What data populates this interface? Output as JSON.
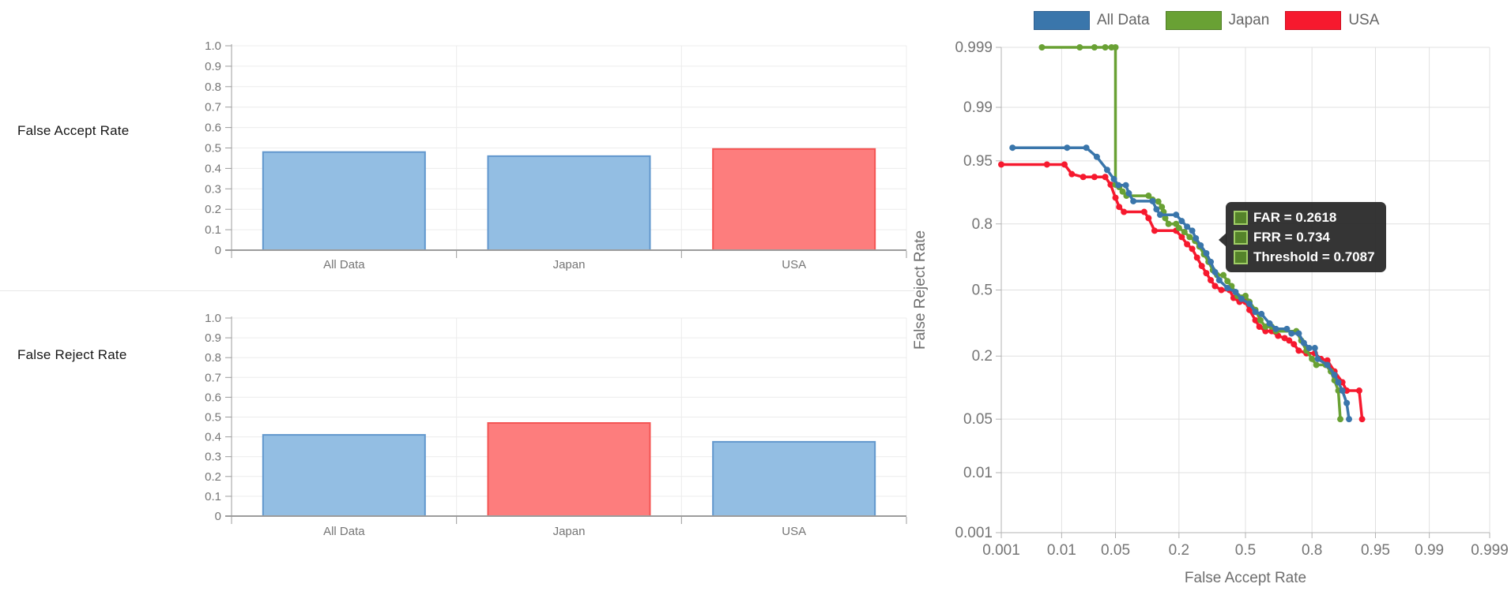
{
  "colors": {
    "background": "#ffffff",
    "bar_fill": "#93bee3",
    "bar_stroke": "#6197cd",
    "bar_highlight_fill": "#fd7d7d",
    "bar_highlight_stroke": "#f45453",
    "grid_bar": "#ececec",
    "grid_det": "#e0e0e0",
    "axis": "#9c9c9c",
    "axis_det": "#b3b3b3",
    "tick_text": "#757575",
    "axis_title": "#6e6e6e",
    "row_label": "#161616",
    "legend_text": "#666666",
    "tooltip_bg": "#2a2a2a",
    "tooltip_text": "#ffffff",
    "tooltip_swatch_fill": "#55832a",
    "tooltip_swatch_border": "#a0ce66"
  },
  "chart_data": [
    {
      "type": "bar",
      "row_label": "False Accept Rate",
      "categories": [
        "All Data",
        "Japan",
        "USA"
      ],
      "values": [
        0.48,
        0.46,
        0.495
      ],
      "highlight_index": 2,
      "ylim": [
        0,
        1
      ],
      "y_ticks": [
        0,
        0.1,
        0.2,
        0.3,
        0.4,
        0.5,
        0.6,
        0.7,
        0.8,
        0.9,
        1.0
      ],
      "y_tick_labels": [
        "0",
        "0.1",
        "0.2",
        "0.3",
        "0.4",
        "0.5",
        "0.6",
        "0.7",
        "0.8",
        "0.9",
        "1.0"
      ],
      "grid": true
    },
    {
      "type": "bar",
      "row_label": "False Reject Rate",
      "categories": [
        "All Data",
        "Japan",
        "USA"
      ],
      "values": [
        0.41,
        0.47,
        0.375
      ],
      "highlight_index": 1,
      "ylim": [
        0,
        1
      ],
      "y_ticks": [
        0,
        0.1,
        0.2,
        0.3,
        0.4,
        0.5,
        0.6,
        0.7,
        0.8,
        0.9,
        1.0
      ],
      "y_tick_labels": [
        "0",
        "0.1",
        "0.2",
        "0.3",
        "0.4",
        "0.5",
        "0.6",
        "0.7",
        "0.8",
        "0.9",
        "1.0"
      ],
      "grid": true
    },
    {
      "type": "line",
      "scale": "probit",
      "xlabel": "False Accept Rate",
      "ylabel": "False Reject Rate",
      "x_range": [
        0.001,
        0.999
      ],
      "y_range": [
        0.001,
        0.999
      ],
      "ticks": [
        0.001,
        0.01,
        0.05,
        0.2,
        0.5,
        0.8,
        0.95,
        0.99,
        0.999
      ],
      "tick_labels": [
        "0.001",
        "0.01",
        "0.05",
        "0.2",
        "0.5",
        "0.8",
        "0.95",
        "0.99",
        "0.999"
      ],
      "grid": true,
      "legend_position": "top",
      "series": [
        {
          "name": "All Data",
          "color": "#3a76ab",
          "border": "#2d5f90",
          "points": [
            [
              0.0016,
              0.965
            ],
            [
              0.012,
              0.965
            ],
            [
              0.022,
              0.965
            ],
            [
              0.03,
              0.955
            ],
            [
              0.04,
              0.937
            ],
            [
              0.048,
              0.921
            ],
            [
              0.054,
              0.909
            ],
            [
              0.065,
              0.909
            ],
            [
              0.07,
              0.891
            ],
            [
              0.078,
              0.871
            ],
            [
              0.12,
              0.871
            ],
            [
              0.13,
              0.848
            ],
            [
              0.14,
              0.831
            ],
            [
              0.19,
              0.831
            ],
            [
              0.21,
              0.81
            ],
            [
              0.23,
              0.79
            ],
            [
              0.25,
              0.775
            ],
            [
              0.265,
              0.745
            ],
            [
              0.285,
              0.715
            ],
            [
              0.31,
              0.68
            ],
            [
              0.33,
              0.64
            ],
            [
              0.35,
              0.59
            ],
            [
              0.37,
              0.55
            ],
            [
              0.41,
              0.51
            ],
            [
              0.45,
              0.49
            ],
            [
              0.48,
              0.455
            ],
            [
              0.52,
              0.43
            ],
            [
              0.55,
              0.39
            ],
            [
              0.58,
              0.38
            ],
            [
              0.62,
              0.335
            ],
            [
              0.65,
              0.31
            ],
            [
              0.7,
              0.31
            ],
            [
              0.72,
              0.29
            ],
            [
              0.75,
              0.29
            ],
            [
              0.77,
              0.25
            ],
            [
              0.79,
              0.23
            ],
            [
              0.81,
              0.23
            ],
            [
              0.82,
              0.19
            ],
            [
              0.85,
              0.17
            ],
            [
              0.87,
              0.14
            ],
            [
              0.88,
              0.12
            ],
            [
              0.89,
              0.1
            ],
            [
              0.9,
              0.075
            ],
            [
              0.905,
              0.05
            ]
          ]
        },
        {
          "name": "Japan",
          "color": "#69a134",
          "border": "#4f7d24",
          "points": [
            [
              0.005,
              0.999
            ],
            [
              0.018,
              0.999
            ],
            [
              0.028,
              0.999
            ],
            [
              0.038,
              0.999
            ],
            [
              0.045,
              0.999
            ],
            [
              0.05,
              0.999
            ],
            [
              0.05,
              0.91
            ],
            [
              0.055,
              0.905
            ],
            [
              0.06,
              0.895
            ],
            [
              0.066,
              0.885
            ],
            [
              0.11,
              0.885
            ],
            [
              0.12,
              0.875
            ],
            [
              0.135,
              0.87
            ],
            [
              0.145,
              0.855
            ],
            [
              0.15,
              0.84
            ],
            [
              0.155,
              0.82
            ],
            [
              0.165,
              0.8
            ],
            [
              0.19,
              0.8
            ],
            [
              0.2,
              0.785
            ],
            [
              0.22,
              0.77
            ],
            [
              0.24,
              0.75
            ],
            [
              0.2618,
              0.734
            ],
            [
              0.28,
              0.71
            ],
            [
              0.3,
              0.675
            ],
            [
              0.32,
              0.64
            ],
            [
              0.34,
              0.6
            ],
            [
              0.36,
              0.575
            ],
            [
              0.39,
              0.575
            ],
            [
              0.41,
              0.545
            ],
            [
              0.43,
              0.52
            ],
            [
              0.46,
              0.47
            ],
            [
              0.5,
              0.47
            ],
            [
              0.52,
              0.44
            ],
            [
              0.55,
              0.4
            ],
            [
              0.575,
              0.35
            ],
            [
              0.6,
              0.32
            ],
            [
              0.63,
              0.32
            ],
            [
              0.65,
              0.3
            ],
            [
              0.74,
              0.3
            ],
            [
              0.76,
              0.26
            ],
            [
              0.78,
              0.22
            ],
            [
              0.8,
              0.19
            ],
            [
              0.815,
              0.17
            ],
            [
              0.845,
              0.17
            ],
            [
              0.86,
              0.15
            ],
            [
              0.87,
              0.125
            ],
            [
              0.88,
              0.1
            ],
            [
              0.885,
              0.05
            ]
          ]
        },
        {
          "name": "USA",
          "color": "#f6192e",
          "border": "#cc1022",
          "points": [
            [
              0.001,
              0.945
            ],
            [
              0.006,
              0.945
            ],
            [
              0.011,
              0.945
            ],
            [
              0.014,
              0.93
            ],
            [
              0.02,
              0.925
            ],
            [
              0.028,
              0.925
            ],
            [
              0.038,
              0.925
            ],
            [
              0.044,
              0.91
            ],
            [
              0.05,
              0.88
            ],
            [
              0.055,
              0.855
            ],
            [
              0.062,
              0.84
            ],
            [
              0.1,
              0.84
            ],
            [
              0.11,
              0.82
            ],
            [
              0.125,
              0.775
            ],
            [
              0.19,
              0.775
            ],
            [
              0.21,
              0.75
            ],
            [
              0.23,
              0.72
            ],
            [
              0.25,
              0.7
            ],
            [
              0.27,
              0.66
            ],
            [
              0.29,
              0.62
            ],
            [
              0.31,
              0.585
            ],
            [
              0.33,
              0.55
            ],
            [
              0.35,
              0.52
            ],
            [
              0.38,
              0.5
            ],
            [
              0.42,
              0.5
            ],
            [
              0.44,
              0.46
            ],
            [
              0.47,
              0.44
            ],
            [
              0.5,
              0.44
            ],
            [
              0.52,
              0.4
            ],
            [
              0.55,
              0.35
            ],
            [
              0.57,
              0.32
            ],
            [
              0.6,
              0.3
            ],
            [
              0.63,
              0.3
            ],
            [
              0.66,
              0.28
            ],
            [
              0.69,
              0.27
            ],
            [
              0.71,
              0.26
            ],
            [
              0.73,
              0.245
            ],
            [
              0.75,
              0.22
            ],
            [
              0.78,
              0.21
            ],
            [
              0.81,
              0.21
            ],
            [
              0.83,
              0.19
            ],
            [
              0.85,
              0.185
            ],
            [
              0.87,
              0.15
            ],
            [
              0.89,
              0.12
            ],
            [
              0.9,
              0.1
            ],
            [
              0.925,
              0.1
            ],
            [
              0.93,
              0.05
            ]
          ]
        }
      ],
      "tooltip": {
        "lines": [
          "FAR = 0.2618",
          "FRR = 0.734",
          "Threshold = 0.7087"
        ],
        "anchor": {
          "far": 0.2618,
          "frr": 0.734
        }
      }
    }
  ]
}
